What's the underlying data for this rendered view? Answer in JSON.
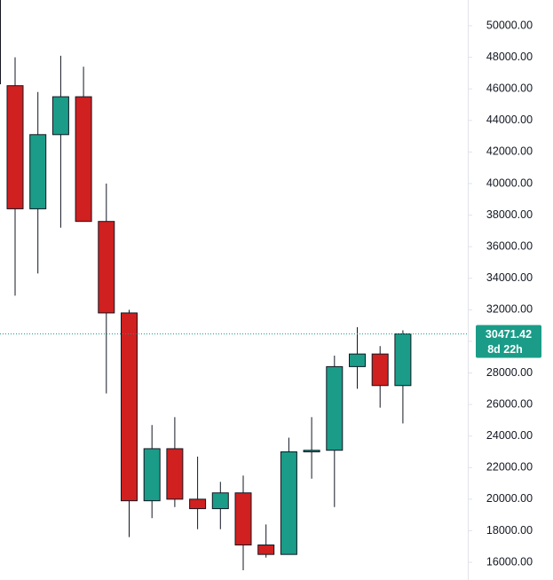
{
  "chart_data": {
    "type": "candlestick",
    "open": [
      46200,
      38400,
      43100,
      45500,
      37600,
      31800,
      19900,
      23200,
      20000,
      19400,
      20400,
      17100,
      16500,
      23000,
      23100,
      28400,
      29200,
      27200
    ],
    "high": [
      48000,
      45800,
      48100,
      47400,
      40000,
      32000,
      24700,
      25200,
      22700,
      21100,
      21500,
      18400,
      23900,
      25200,
      29100,
      30900,
      29700,
      30700
    ],
    "low": [
      32900,
      34300,
      37200,
      37600,
      26700,
      17600,
      18800,
      19500,
      18100,
      18100,
      15500,
      16300,
      16500,
      21300,
      19500,
      27000,
      25800,
      24800
    ],
    "close": [
      38400,
      43100,
      45500,
      37600,
      31800,
      19900,
      23200,
      20000,
      19400,
      20400,
      17100,
      16500,
      23000,
      23100,
      28400,
      29200,
      27200,
      30471.42
    ],
    "up_color": "#1a9c88",
    "down_color": "#d0201f",
    "current_price": 30471.42,
    "countdown": "8d 22h",
    "ylim": [
      14880,
      51630
    ],
    "yticks": [
      {
        "value": 16000,
        "label": "16000.00"
      },
      {
        "value": 18000,
        "label": "18000.00"
      },
      {
        "value": 20000,
        "label": "20000.00"
      },
      {
        "value": 22000,
        "label": "22000.00"
      },
      {
        "value": 24000,
        "label": "24000.00"
      },
      {
        "value": 26000,
        "label": "26000.00"
      },
      {
        "value": 28000,
        "label": "28000.00"
      },
      {
        "value": 30000,
        "label": "30000.00"
      },
      {
        "value": 32000,
        "label": "32000.00"
      },
      {
        "value": 34000,
        "label": "34000.00"
      },
      {
        "value": 36000,
        "label": "36000.00"
      },
      {
        "value": 38000,
        "label": "38000.00"
      },
      {
        "value": 40000,
        "label": "40000.00"
      },
      {
        "value": 42000,
        "label": "42000.00"
      },
      {
        "value": 44000,
        "label": "44000.00"
      },
      {
        "value": 46000,
        "label": "46000.00"
      },
      {
        "value": 48000,
        "label": "48000.00"
      },
      {
        "value": 50000,
        "label": "50000.00"
      }
    ]
  }
}
